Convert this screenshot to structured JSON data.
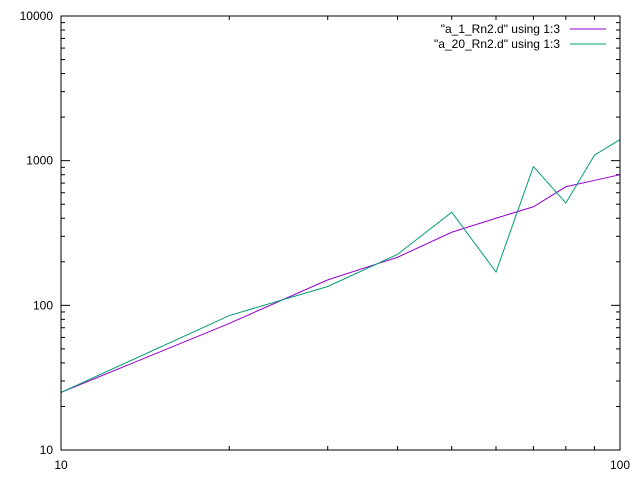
{
  "chart_data": {
    "type": "line",
    "title": "",
    "xlabel": "",
    "ylabel": "",
    "x_scale": "log",
    "y_scale": "log",
    "xlim": [
      10,
      100
    ],
    "ylim": [
      10,
      10000
    ],
    "x_tick_labels": [
      {
        "value": 10,
        "label": "10"
      },
      {
        "value": 100,
        "label": "100"
      }
    ],
    "y_tick_labels": [
      {
        "value": 10,
        "label": "10"
      },
      {
        "value": 100,
        "label": "100"
      },
      {
        "value": 1000,
        "label": "1000"
      },
      {
        "value": 10000,
        "label": "10000"
      }
    ],
    "grid": false,
    "legend_position": "top-right",
    "series": [
      {
        "name": "\"a_1_Rn2.d\" using 1:3",
        "color": "#9400d3",
        "x": [
          10,
          20,
          30,
          40,
          50,
          60,
          70,
          80,
          90,
          100
        ],
        "y": [
          25,
          75,
          150,
          215,
          320,
          400,
          480,
          660,
          730,
          800
        ]
      },
      {
        "name": "\"a_20_Rn2.d\" using 1:3",
        "color": "#009e73",
        "x": [
          10,
          20,
          30,
          40,
          50,
          60,
          70,
          80,
          90,
          100
        ],
        "y": [
          25,
          85,
          135,
          225,
          440,
          170,
          910,
          510,
          1090,
          1400
        ]
      }
    ]
  }
}
